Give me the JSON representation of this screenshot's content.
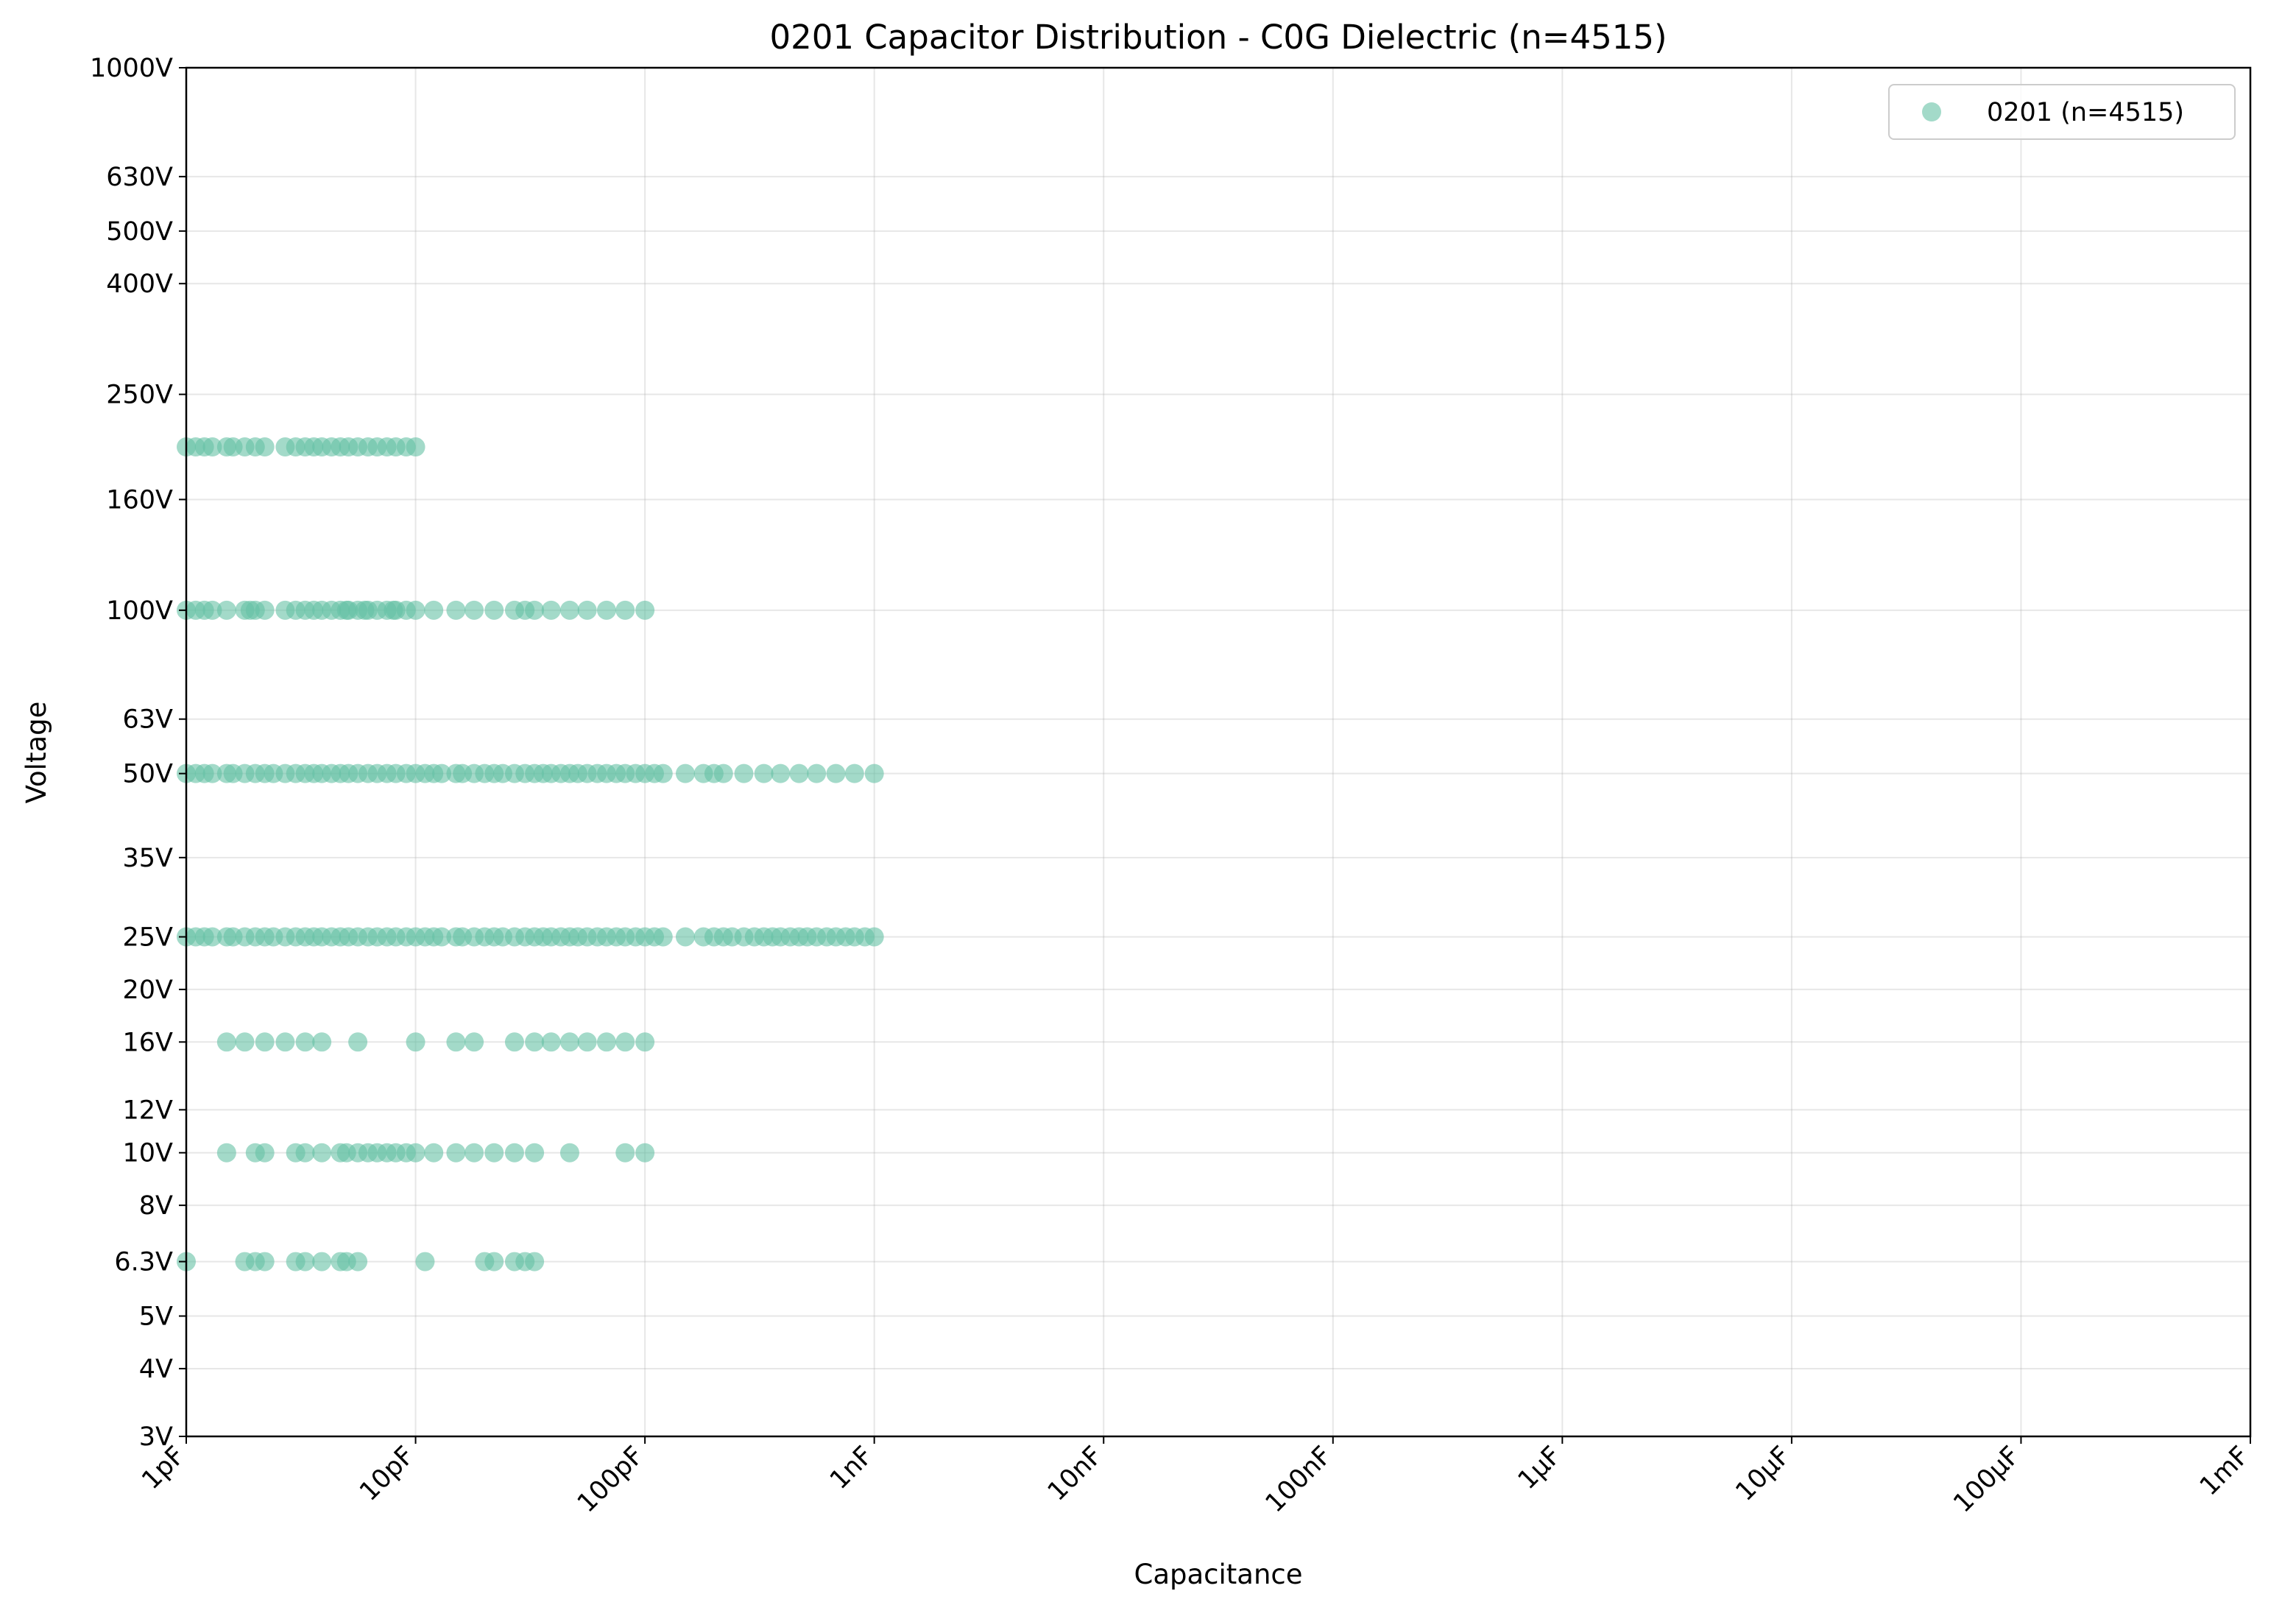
{
  "chart_data": {
    "type": "scatter",
    "title": "0201 Capacitor Distribution - C0G Dielectric (n=4515)",
    "xlabel": "Capacitance",
    "ylabel": "Voltage",
    "x_scale": "log",
    "y_scale": "log",
    "x_unit": "F",
    "y_unit": "V",
    "xlim": [
      1e-12,
      0.001
    ],
    "ylim": [
      3,
      1000
    ],
    "x_ticks": [
      {
        "value": 1e-12,
        "label": "1pF"
      },
      {
        "value": 1e-11,
        "label": "10pF"
      },
      {
        "value": 1e-10,
        "label": "100pF"
      },
      {
        "value": 1e-09,
        "label": "1nF"
      },
      {
        "value": 1e-08,
        "label": "10nF"
      },
      {
        "value": 1e-07,
        "label": "100nF"
      },
      {
        "value": 1e-06,
        "label": "1µF"
      },
      {
        "value": 1e-05,
        "label": "10µF"
      },
      {
        "value": 0.0001,
        "label": "100µF"
      },
      {
        "value": 0.001,
        "label": "1mF"
      }
    ],
    "y_ticks": [
      {
        "value": 3,
        "label": "3V"
      },
      {
        "value": 4,
        "label": "4V"
      },
      {
        "value": 5,
        "label": "5V"
      },
      {
        "value": 6.3,
        "label": "6.3V"
      },
      {
        "value": 8,
        "label": "8V"
      },
      {
        "value": 10,
        "label": "10V"
      },
      {
        "value": 12,
        "label": "12V"
      },
      {
        "value": 16,
        "label": "16V"
      },
      {
        "value": 20,
        "label": "20V"
      },
      {
        "value": 25,
        "label": "25V"
      },
      {
        "value": 35,
        "label": "35V"
      },
      {
        "value": 50,
        "label": "50V"
      },
      {
        "value": 63,
        "label": "63V"
      },
      {
        "value": 100,
        "label": "100V"
      },
      {
        "value": 160,
        "label": "160V"
      },
      {
        "value": 250,
        "label": "250V"
      },
      {
        "value": 400,
        "label": "400V"
      },
      {
        "value": 500,
        "label": "500V"
      },
      {
        "value": 630,
        "label": "630V"
      },
      {
        "value": 1000,
        "label": "1000V"
      }
    ],
    "grid": true,
    "legend_position": "top-right",
    "series": [
      {
        "name": "0201 (n=4515)",
        "color": "#66c2a5",
        "points": [
          {
            "voltage": 200,
            "capacitance_pF": [
              1.0,
              1.1,
              1.2,
              1.3,
              1.5,
              1.6,
              1.8,
              2.0,
              2.2,
              2.7,
              3.0,
              3.3,
              3.6,
              3.9,
              4.3,
              4.7,
              5.1,
              5.6,
              6.2,
              6.8,
              7.5,
              8.2,
              9.1,
              10
            ]
          },
          {
            "voltage": 100,
            "capacitance_pF": [
              1.0,
              1.1,
              1.2,
              1.3,
              1.5,
              1.8,
              1.9,
              2.0,
              2.2,
              2.7,
              3.0,
              3.3,
              3.6,
              3.9,
              4.3,
              4.7,
              5.0,
              5.1,
              5.6,
              6.0,
              6.2,
              6.8,
              7.5,
              8.0,
              8.2,
              9.1,
              10,
              12,
              15,
              18,
              22,
              27,
              30,
              33,
              39,
              47,
              56,
              68,
              82,
              100
            ]
          },
          {
            "voltage": 50,
            "capacitance_pF": [
              1.0,
              1.1,
              1.2,
              1.3,
              1.5,
              1.6,
              1.8,
              2.0,
              2.2,
              2.4,
              2.7,
              3.0,
              3.3,
              3.6,
              3.9,
              4.3,
              4.7,
              5.1,
              5.6,
              6.2,
              6.8,
              7.5,
              8.2,
              9.1,
              10,
              11,
              12,
              13,
              15,
              16,
              18,
              20,
              22,
              24,
              27,
              30,
              33,
              36,
              39,
              43,
              47,
              51,
              56,
              62,
              68,
              75,
              82,
              91,
              100,
              110,
              120,
              150,
              180,
              200,
              220,
              270,
              330,
              390,
              470,
              560,
              680,
              820,
              1000
            ]
          },
          {
            "voltage": 25,
            "capacitance_pF": [
              1.0,
              1.1,
              1.2,
              1.3,
              1.5,
              1.6,
              1.8,
              2.0,
              2.2,
              2.4,
              2.7,
              3.0,
              3.3,
              3.6,
              3.9,
              4.3,
              4.7,
              5.1,
              5.6,
              6.2,
              6.8,
              7.5,
              8.2,
              9.1,
              10,
              11,
              12,
              13,
              15,
              16,
              18,
              20,
              22,
              24,
              27,
              30,
              33,
              36,
              39,
              43,
              47,
              51,
              56,
              62,
              68,
              75,
              82,
              91,
              100,
              110,
              120,
              150,
              180,
              200,
              220,
              240,
              270,
              300,
              330,
              360,
              390,
              430,
              470,
              510,
              560,
              620,
              680,
              750,
              820,
              910,
              1000
            ]
          },
          {
            "voltage": 16,
            "capacitance_pF": [
              1.5,
              1.8,
              2.2,
              2.7,
              3.3,
              3.9,
              5.6,
              10,
              15,
              18,
              27,
              33,
              39,
              47,
              56,
              68,
              82,
              100
            ]
          },
          {
            "voltage": 10,
            "capacitance_pF": [
              1.5,
              2.0,
              2.2,
              3.0,
              3.3,
              3.9,
              4.7,
              5.0,
              5.6,
              6.2,
              6.8,
              7.5,
              8.2,
              9.1,
              10,
              12,
              15,
              18,
              22,
              27,
              33,
              47,
              82,
              100
            ]
          },
          {
            "voltage": 6.3,
            "capacitance_pF": [
              1.0,
              1.8,
              2.0,
              2.2,
              3.0,
              3.3,
              3.9,
              4.7,
              5.0,
              5.6,
              11,
              20,
              22,
              27,
              30,
              33
            ]
          }
        ]
      }
    ]
  }
}
